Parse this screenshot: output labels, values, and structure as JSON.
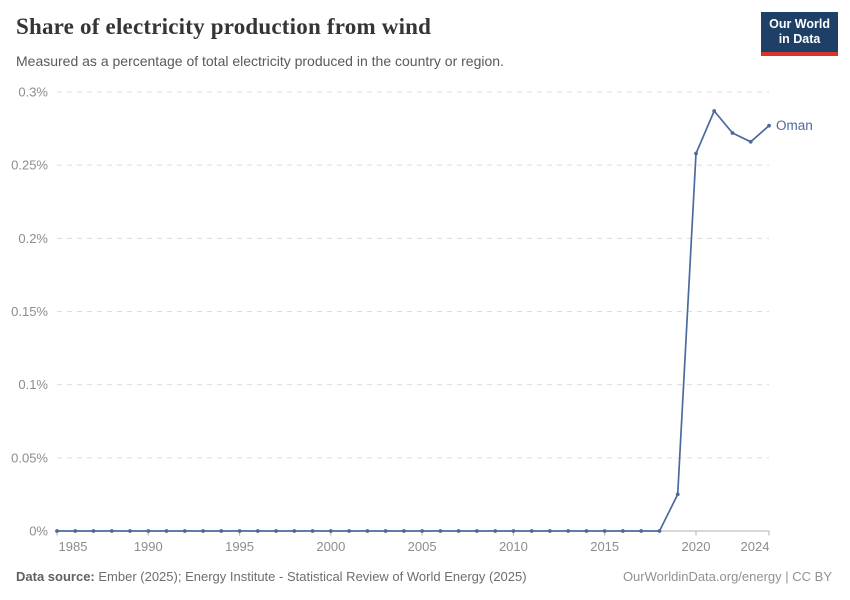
{
  "header": {
    "title": "Share of electricity production from wind",
    "subtitle": "Measured as a percentage of total electricity produced in the country or region."
  },
  "logo": {
    "line1": "Our World",
    "line2": "in Data",
    "bg_color": "#1e3f66",
    "accent_color": "#d8352a"
  },
  "footer": {
    "source_label": "Data source:",
    "source_text": " Ember (2025); Energy Institute - Statistical Review of World Energy (2025)",
    "license_text": "OurWorldinData.org/energy | CC BY"
  },
  "chart_data": {
    "type": "line",
    "title": "Share of electricity production from wind",
    "subtitle": "Measured as a percentage of total electricity produced in the country or region.",
    "xlabel": "",
    "ylabel": "",
    "xlim": [
      1985,
      2024
    ],
    "ylim": [
      0,
      0.3
    ],
    "grid": "horizontal-dashed",
    "legend_position": "end-of-line-label",
    "colors": {
      "line": "#4c6a9c",
      "gridline": "#dcdcdc",
      "axis": "#b0b0b0",
      "tick_label": "#8d8d8d"
    },
    "xticks": [
      {
        "v": 1985,
        "label": "1985"
      },
      {
        "v": 1990,
        "label": "1990"
      },
      {
        "v": 1995,
        "label": "1995"
      },
      {
        "v": 2000,
        "label": "2000"
      },
      {
        "v": 2005,
        "label": "2005"
      },
      {
        "v": 2010,
        "label": "2010"
      },
      {
        "v": 2015,
        "label": "2015"
      },
      {
        "v": 2020,
        "label": "2020"
      },
      {
        "v": 2024,
        "label": "2024"
      }
    ],
    "yticks": [
      {
        "v": 0,
        "label": "0%"
      },
      {
        "v": 0.05,
        "label": "0.05%"
      },
      {
        "v": 0.1,
        "label": "0.1%"
      },
      {
        "v": 0.15,
        "label": "0.15%"
      },
      {
        "v": 0.2,
        "label": "0.2%"
      },
      {
        "v": 0.25,
        "label": "0.25%"
      },
      {
        "v": 0.3,
        "label": "0.3%"
      }
    ],
    "series": [
      {
        "name": "Oman",
        "color": "#4c6a9c",
        "x": [
          1985,
          1986,
          1987,
          1988,
          1989,
          1990,
          1991,
          1992,
          1993,
          1994,
          1995,
          1996,
          1997,
          1998,
          1999,
          2000,
          2001,
          2002,
          2003,
          2004,
          2005,
          2006,
          2007,
          2008,
          2009,
          2010,
          2011,
          2012,
          2013,
          2014,
          2015,
          2016,
          2017,
          2018,
          2019,
          2020,
          2021,
          2022,
          2023,
          2024
        ],
        "y": [
          0,
          0,
          0,
          0,
          0,
          0,
          0,
          0,
          0,
          0,
          0,
          0,
          0,
          0,
          0,
          0,
          0,
          0,
          0,
          0,
          0,
          0,
          0,
          0,
          0,
          0,
          0,
          0,
          0,
          0,
          0,
          0,
          0,
          0,
          0.025,
          0.258,
          0.287,
          0.272,
          0.266,
          0.277
        ]
      }
    ]
  }
}
